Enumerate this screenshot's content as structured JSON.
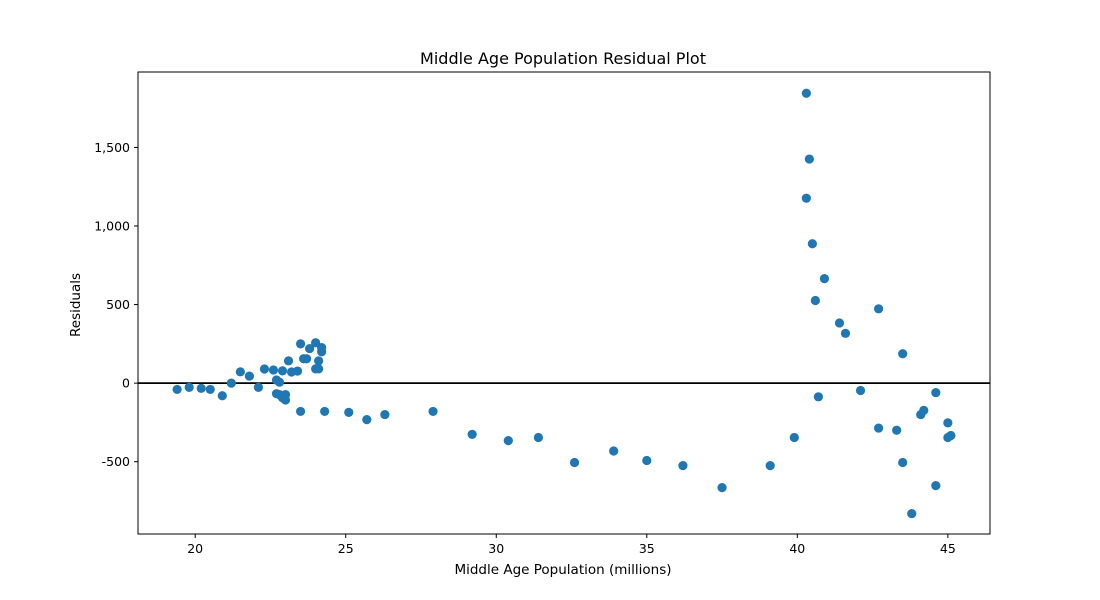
{
  "chart_data": {
    "type": "scatter",
    "title": "Middle Age Population Residual Plot",
    "xlabel": "Middle Age Population (millions)",
    "ylabel": "Residuals",
    "xlim": [
      18.1,
      46.4
    ],
    "ylim": [
      -960,
      1980
    ],
    "x_ticks": [
      20,
      25,
      30,
      35,
      40,
      45
    ],
    "x_tick_labels": [
      "20",
      "25",
      "30",
      "35",
      "40",
      "45"
    ],
    "y_ticks": [
      -500,
      0,
      500,
      1000,
      1500
    ],
    "y_tick_labels": [
      "-500",
      "0",
      "500",
      "1,000",
      "1,500"
    ],
    "grid": false,
    "reference_line_y": 0,
    "colors": {
      "marker": "#1f77b4",
      "reference_line": "#000000"
    },
    "series": [
      {
        "points": [
          {
            "x": 19.4,
            "y": -40
          },
          {
            "x": 19.8,
            "y": -27
          },
          {
            "x": 20.2,
            "y": -33
          },
          {
            "x": 20.5,
            "y": -40
          },
          {
            "x": 20.9,
            "y": -80
          },
          {
            "x": 21.2,
            "y": 0
          },
          {
            "x": 21.5,
            "y": 72
          },
          {
            "x": 21.8,
            "y": 45
          },
          {
            "x": 22.1,
            "y": -27
          },
          {
            "x": 22.3,
            "y": 90
          },
          {
            "x": 22.6,
            "y": 84
          },
          {
            "x": 22.7,
            "y": 20
          },
          {
            "x": 22.7,
            "y": -67
          },
          {
            "x": 22.8,
            "y": -73
          },
          {
            "x": 22.8,
            "y": 6
          },
          {
            "x": 22.9,
            "y": 78
          },
          {
            "x": 22.9,
            "y": -93
          },
          {
            "x": 23.0,
            "y": -107
          },
          {
            "x": 23.0,
            "y": -73
          },
          {
            "x": 23.1,
            "y": 142
          },
          {
            "x": 23.2,
            "y": 71
          },
          {
            "x": 23.4,
            "y": 77
          },
          {
            "x": 23.5,
            "y": 250
          },
          {
            "x": 23.5,
            "y": -180
          },
          {
            "x": 23.6,
            "y": 155
          },
          {
            "x": 23.7,
            "y": 155
          },
          {
            "x": 23.8,
            "y": 220
          },
          {
            "x": 24.0,
            "y": 257
          },
          {
            "x": 24.0,
            "y": 91
          },
          {
            "x": 24.1,
            "y": 91
          },
          {
            "x": 24.1,
            "y": 142
          },
          {
            "x": 24.2,
            "y": 200
          },
          {
            "x": 24.2,
            "y": 226
          },
          {
            "x": 24.3,
            "y": -180
          },
          {
            "x": 25.1,
            "y": -186
          },
          {
            "x": 25.7,
            "y": -232
          },
          {
            "x": 26.3,
            "y": -200
          },
          {
            "x": 27.9,
            "y": -180
          },
          {
            "x": 29.2,
            "y": -326
          },
          {
            "x": 30.4,
            "y": -366
          },
          {
            "x": 31.4,
            "y": -346
          },
          {
            "x": 32.6,
            "y": -505
          },
          {
            "x": 33.9,
            "y": -432
          },
          {
            "x": 35.0,
            "y": -492
          },
          {
            "x": 36.2,
            "y": -525
          },
          {
            "x": 37.5,
            "y": -665
          },
          {
            "x": 39.1,
            "y": -525
          },
          {
            "x": 39.9,
            "y": -346
          },
          {
            "x": 40.3,
            "y": 1845
          },
          {
            "x": 40.4,
            "y": 1426
          },
          {
            "x": 40.3,
            "y": 1177
          },
          {
            "x": 40.5,
            "y": 887
          },
          {
            "x": 40.6,
            "y": 526
          },
          {
            "x": 40.7,
            "y": -87
          },
          {
            "x": 40.9,
            "y": 665
          },
          {
            "x": 41.4,
            "y": 383
          },
          {
            "x": 41.6,
            "y": 317
          },
          {
            "x": 42.1,
            "y": -47
          },
          {
            "x": 42.7,
            "y": 473
          },
          {
            "x": 42.7,
            "y": -286
          },
          {
            "x": 43.3,
            "y": -300
          },
          {
            "x": 43.5,
            "y": 187
          },
          {
            "x": 43.5,
            "y": -505
          },
          {
            "x": 43.8,
            "y": -830
          },
          {
            "x": 44.1,
            "y": -200
          },
          {
            "x": 44.2,
            "y": -173
          },
          {
            "x": 44.6,
            "y": -60
          },
          {
            "x": 44.6,
            "y": -652
          },
          {
            "x": 45.0,
            "y": -253
          },
          {
            "x": 45.0,
            "y": -346
          },
          {
            "x": 45.1,
            "y": -333
          }
        ]
      }
    ]
  }
}
